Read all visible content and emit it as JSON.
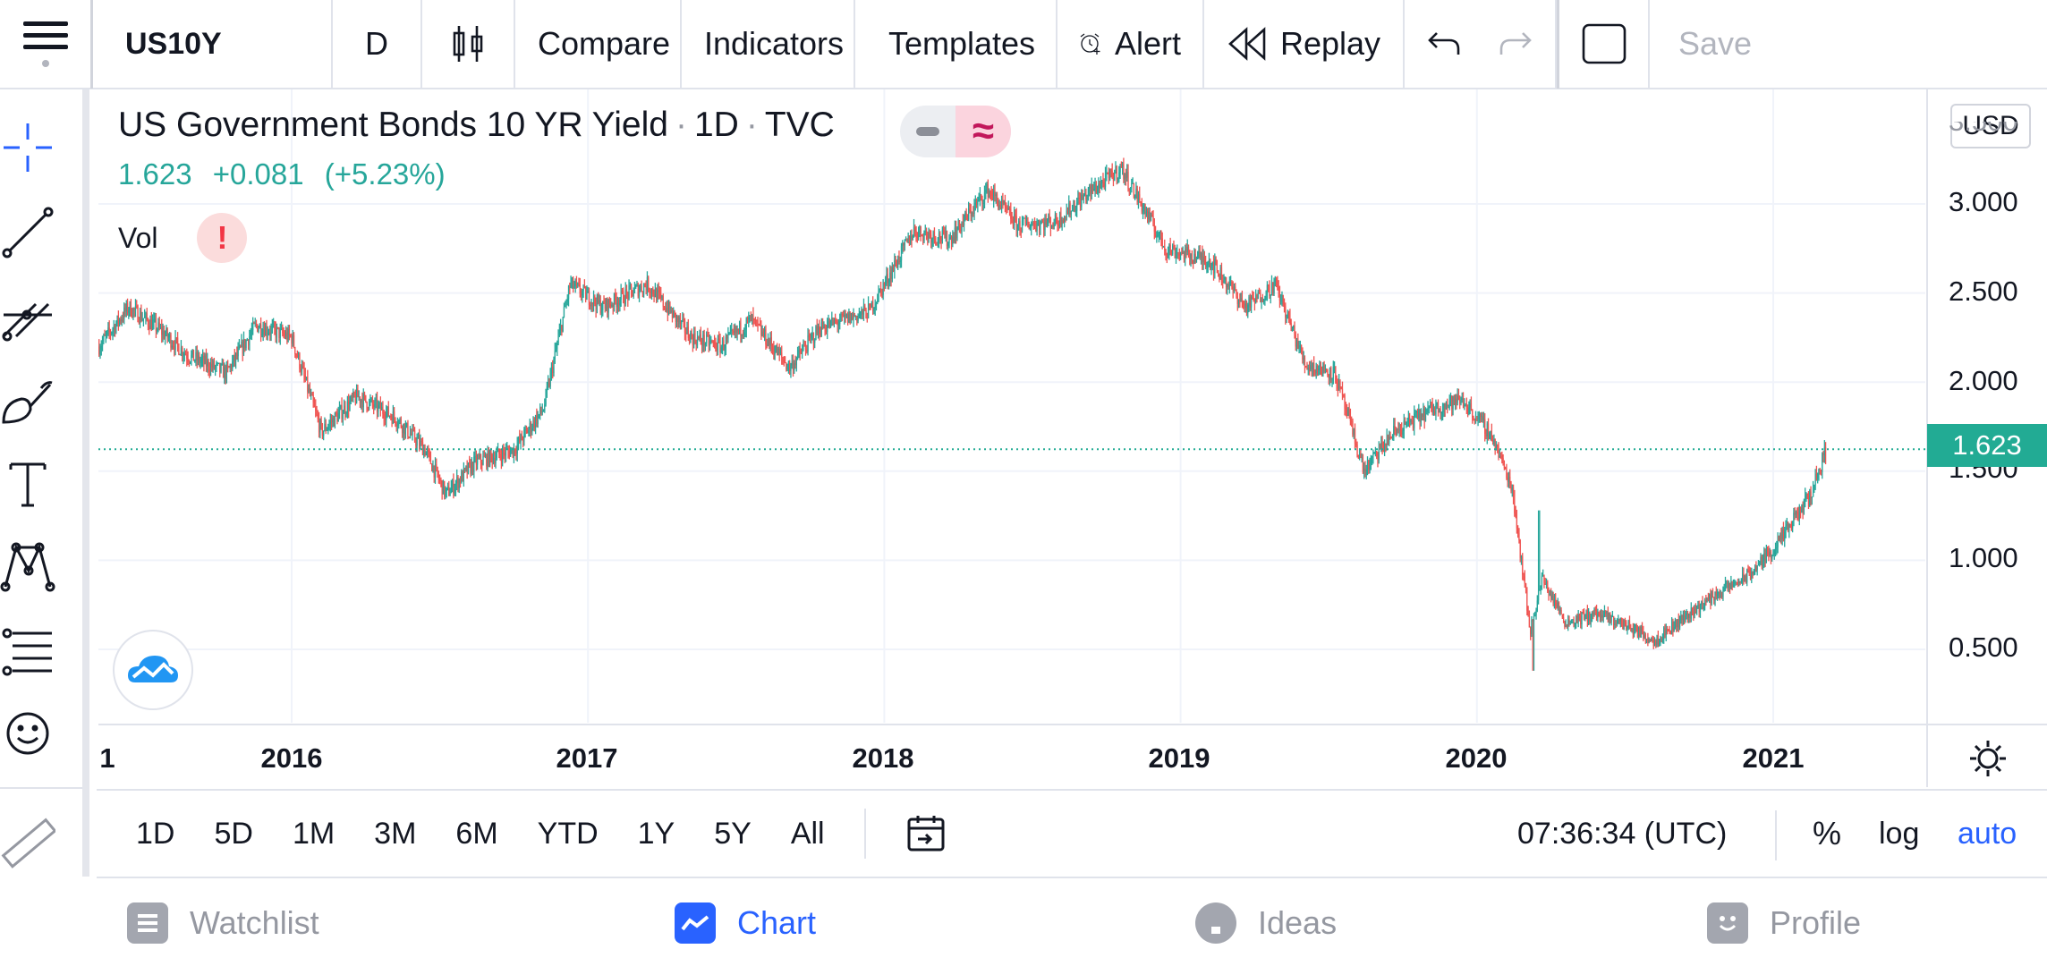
{
  "toolbar": {
    "symbol": "US10Y",
    "interval": "D",
    "compare_label": "Compare",
    "indicators_label": "Indicators",
    "templates_label": "Templates",
    "alert_label": "Alert",
    "replay_label": "Replay",
    "save_label": "Save"
  },
  "legend": {
    "title": "US Government Bonds 10 YR Yield",
    "interval": "1D",
    "exchange": "TVC",
    "last": "1.623",
    "change": "+0.081",
    "change_pct": "(+5.23%)",
    "volume_label": "Vol",
    "volume_warning": "!"
  },
  "price_axis": {
    "currency": "USD",
    "ticks": [
      "3.000",
      "2.500",
      "2.000",
      "1.500",
      "1.000",
      "0.500"
    ],
    "top_partial": "3.500",
    "current_price": "1.623"
  },
  "time_axis": {
    "left_partial": "1",
    "ticks": [
      "2016",
      "2017",
      "2018",
      "2019",
      "2020",
      "2021"
    ]
  },
  "range_bar": {
    "ranges": [
      "1D",
      "5D",
      "1M",
      "3M",
      "6M",
      "YTD",
      "1Y",
      "5Y",
      "All"
    ],
    "clock": "07:36:34 (UTC)",
    "percent": "%",
    "log": "log",
    "auto": "auto"
  },
  "bottom_nav": {
    "watchlist": "Watchlist",
    "chart": "Chart",
    "ideas": "Ideas",
    "profile": "Profile"
  },
  "colors": {
    "up": "#26a69a",
    "down": "#ef5350",
    "accent": "#2962ff",
    "price_label": "#22ab94"
  },
  "chart_data": {
    "type": "candlestick",
    "title": "US Government Bonds 10 YR Yield · 1D · TVC",
    "x_ticks": [
      "2016",
      "2017",
      "2018",
      "2019",
      "2020",
      "2021"
    ],
    "ylim": [
      0.1,
      3.5
    ],
    "current": 1.623,
    "anchors": [
      {
        "t": 2015.35,
        "y": 2.2
      },
      {
        "t": 2015.45,
        "y": 2.42
      },
      {
        "t": 2015.55,
        "y": 2.3
      },
      {
        "t": 2015.65,
        "y": 2.15
      },
      {
        "t": 2015.78,
        "y": 2.05
      },
      {
        "t": 2015.88,
        "y": 2.32
      },
      {
        "t": 2016.0,
        "y": 2.25
      },
      {
        "t": 2016.1,
        "y": 1.72
      },
      {
        "t": 2016.22,
        "y": 1.92
      },
      {
        "t": 2016.35,
        "y": 1.8
      },
      {
        "t": 2016.45,
        "y": 1.62
      },
      {
        "t": 2016.52,
        "y": 1.37
      },
      {
        "t": 2016.62,
        "y": 1.55
      },
      {
        "t": 2016.75,
        "y": 1.62
      },
      {
        "t": 2016.85,
        "y": 1.85
      },
      {
        "t": 2016.94,
        "y": 2.55
      },
      {
        "t": 2017.05,
        "y": 2.42
      },
      {
        "t": 2017.2,
        "y": 2.55
      },
      {
        "t": 2017.35,
        "y": 2.25
      },
      {
        "t": 2017.45,
        "y": 2.2
      },
      {
        "t": 2017.55,
        "y": 2.35
      },
      {
        "t": 2017.68,
        "y": 2.08
      },
      {
        "t": 2017.78,
        "y": 2.3
      },
      {
        "t": 2017.95,
        "y": 2.4
      },
      {
        "t": 2018.1,
        "y": 2.85
      },
      {
        "t": 2018.22,
        "y": 2.8
      },
      {
        "t": 2018.35,
        "y": 3.08
      },
      {
        "t": 2018.45,
        "y": 2.88
      },
      {
        "t": 2018.58,
        "y": 2.9
      },
      {
        "t": 2018.68,
        "y": 3.05
      },
      {
        "t": 2018.8,
        "y": 3.2
      },
      {
        "t": 2018.95,
        "y": 2.75
      },
      {
        "t": 2019.1,
        "y": 2.68
      },
      {
        "t": 2019.22,
        "y": 2.42
      },
      {
        "t": 2019.32,
        "y": 2.55
      },
      {
        "t": 2019.42,
        "y": 2.1
      },
      {
        "t": 2019.52,
        "y": 2.05
      },
      {
        "t": 2019.62,
        "y": 1.5
      },
      {
        "t": 2019.72,
        "y": 1.72
      },
      {
        "t": 2019.85,
        "y": 1.85
      },
      {
        "t": 2019.95,
        "y": 1.9
      },
      {
        "t": 2020.05,
        "y": 1.7
      },
      {
        "t": 2020.12,
        "y": 1.4
      },
      {
        "t": 2020.18,
        "y": 0.6
      },
      {
        "t": 2020.22,
        "y": 0.9
      },
      {
        "t": 2020.3,
        "y": 0.65
      },
      {
        "t": 2020.4,
        "y": 0.7
      },
      {
        "t": 2020.5,
        "y": 0.64
      },
      {
        "t": 2020.6,
        "y": 0.55
      },
      {
        "t": 2020.7,
        "y": 0.68
      },
      {
        "t": 2020.8,
        "y": 0.8
      },
      {
        "t": 2020.92,
        "y": 0.92
      },
      {
        "t": 2021.02,
        "y": 1.1
      },
      {
        "t": 2021.12,
        "y": 1.35
      },
      {
        "t": 2021.18,
        "y": 1.623
      }
    ]
  }
}
